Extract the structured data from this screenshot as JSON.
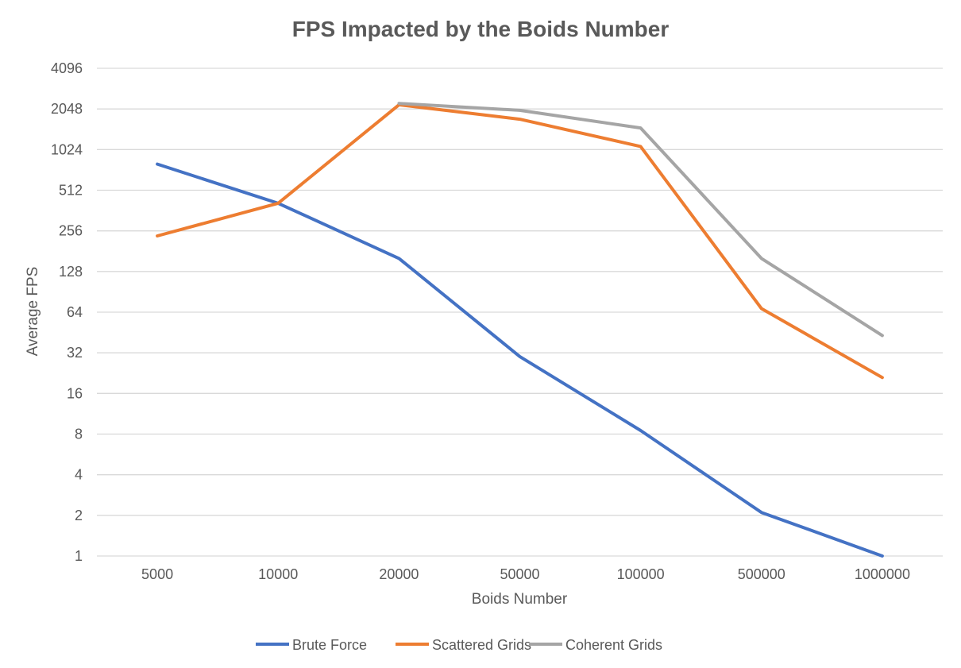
{
  "chart_data": {
    "type": "line",
    "title": "FPS Impacted by the Boids Number",
    "xlabel": "Boids Number",
    "ylabel": "Average FPS",
    "y_scale": "log2",
    "ylim": [
      1,
      4096
    ],
    "yticks": [
      "1",
      "2",
      "4",
      "8",
      "16",
      "32",
      "64",
      "128",
      "256",
      "512",
      "1024",
      "2048",
      "4096"
    ],
    "categories": [
      "5000",
      "10000",
      "20000",
      "50000",
      "100000",
      "500000",
      "1000000"
    ],
    "grid": true,
    "legend_position": "bottom",
    "series": [
      {
        "name": "Brute Force",
        "color": "#4472c4",
        "values": [
          800,
          410,
          160,
          30,
          8.5,
          2.1,
          1
        ]
      },
      {
        "name": "Scattered Grids",
        "color": "#ed7d31",
        "values": [
          235,
          410,
          2200,
          1720,
          1080,
          68,
          21
        ]
      },
      {
        "name": "Coherent Grids",
        "color": "#a5a5a5",
        "values": [
          null,
          null,
          2250,
          2000,
          1480,
          160,
          43
        ]
      }
    ]
  }
}
